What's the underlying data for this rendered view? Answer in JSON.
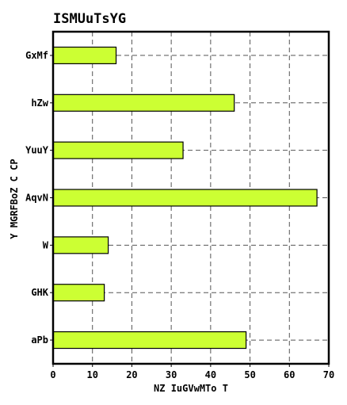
{
  "chart_data": {
    "type": "bar",
    "orientation": "horizontal",
    "title": "ISMUuTsYG",
    "xlabel": "NZ IuGVwMTo T",
    "ylabel": "Y MGRFBoZ C CP",
    "categories": [
      "GxMf",
      "hZw",
      "YuuY",
      "AqvN",
      "W",
      "GHK",
      "aPb"
    ],
    "values": [
      16,
      46,
      33,
      67,
      14,
      13,
      49
    ],
    "xlim": [
      0,
      70
    ],
    "xticks": [
      "0",
      "10",
      "20",
      "30",
      "40",
      "50",
      "60",
      "70"
    ],
    "grid": true,
    "bar_color": "#ccff33"
  }
}
